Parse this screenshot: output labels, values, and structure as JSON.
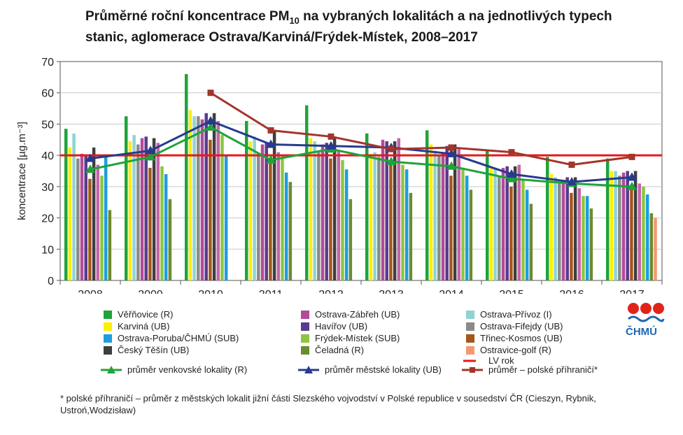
{
  "title": {
    "line1_pre": "Průměrné roční koncentrace PM",
    "line1_sub": "10",
    "line1_post": " na vybraných lokalitách a na jednotlivých typech",
    "line2": "stanic, aglomerace Ostrava/Karviná/Frýdek-Místek, 2008–2017"
  },
  "chart_data": {
    "type": "bar",
    "categories": [
      "2008",
      "2009",
      "2010",
      "2011",
      "2012",
      "2013",
      "2014",
      "2015",
      "2016",
      "2017"
    ],
    "ylabel": "koncentrace [µg.m⁻³]",
    "ylim": [
      0,
      70
    ],
    "yticks": [
      "0",
      "10",
      "20",
      "30",
      "40",
      "50",
      "60",
      "70"
    ],
    "grid": true,
    "series": [
      {
        "name": "Věřňovice (R)",
        "color": "#1fa33a",
        "values": [
          48.5,
          52.5,
          66,
          51,
          56,
          47,
          48,
          41.5,
          39.5,
          39
        ]
      },
      {
        "name": "Karviná (UB)",
        "color": "#ffee00",
        "values": [
          42.5,
          44.5,
          54.5,
          44.5,
          45.5,
          40.5,
          43.5,
          36.5,
          34,
          35
        ]
      },
      {
        "name": "Ostrava-Přívoz (I)",
        "color": "#8fd3d3",
        "values": [
          47,
          46.5,
          52.5,
          46,
          44.5,
          41,
          41.5,
          36,
          33,
          35
        ]
      },
      {
        "name": "Ostrava-Fifejdy (UB)",
        "color": "#8a8a8a",
        "values": [
          39,
          43.5,
          52.5,
          40.5,
          41,
          39.5,
          40,
          33.5,
          31,
          33.5
        ]
      },
      {
        "name": "Ostrava-Zábřeh (UB)",
        "color": "#b14c97",
        "values": [
          40.5,
          45.5,
          51.5,
          43.5,
          43.5,
          45,
          41,
          36,
          32,
          34.5
        ]
      },
      {
        "name": "Havířov (UB)",
        "color": "#5a3a8e",
        "values": [
          40,
          46,
          53.5,
          44,
          44,
          44.5,
          43,
          36.5,
          33,
          35
        ]
      },
      {
        "name": "Třinec-Kosmos (UB)",
        "color": "#a5561b",
        "values": [
          32.5,
          36,
          45,
          38.5,
          39,
          37.5,
          33.5,
          30,
          28,
          30
        ]
      },
      {
        "name": "Český Těšín (UB)",
        "color": "#3e3e3e",
        "values": [
          42.5,
          45.5,
          53.5,
          48,
          46,
          44.5,
          43.5,
          36.5,
          33,
          35
        ]
      },
      {
        "name": "Ostrava-Zábřeh (UB) ",
        "color": "#c564ad",
        "values": [
          37,
          44,
          51,
          41,
          41.5,
          45.5,
          42,
          37,
          29.5,
          31
        ]
      },
      {
        "name": "Frýdek-Místek (SUB)",
        "color": "#8cc63f",
        "values": [
          33.5,
          36.5,
          46.5,
          40,
          38.5,
          37,
          36,
          32,
          27,
          30
        ]
      },
      {
        "name": "Ostrava-Poruba/ČHMÚ (SUB)",
        "color": "#1d9de0",
        "values": [
          40,
          34,
          40,
          34.5,
          35.5,
          35.5,
          33.5,
          29,
          27,
          27.5
        ]
      },
      {
        "name": "Čeladná (R)",
        "color": "#6b8c2e",
        "values": [
          22.5,
          26,
          0,
          31.5,
          26,
          28,
          29,
          24.5,
          23,
          21.5
        ]
      },
      {
        "name": "Ostravice-golf (R)",
        "color": "#f39870",
        "values": [
          0,
          0,
          0,
          0,
          0,
          0,
          0,
          0,
          0,
          20
        ]
      }
    ],
    "bar_order": [
      0,
      1,
      2,
      3,
      4,
      5,
      6,
      7,
      8,
      9,
      10,
      11,
      12
    ],
    "lines": [
      {
        "name": "průměr venkovské lokality (R)",
        "color": "#1fa33a",
        "marker": "triangle",
        "values": [
          35.5,
          39.5,
          49,
          38.5,
          42,
          38,
          36.5,
          32.5,
          31,
          30
        ]
      },
      {
        "name": "průměr městské lokality (UB)",
        "color": "#253b8f",
        "marker": "triangle",
        "values": [
          39,
          41.5,
          51,
          43.5,
          43,
          42.5,
          40.5,
          34,
          31.5,
          33
        ]
      },
      {
        "name": "průměr – polské příhraničí*",
        "color": "#a3352b",
        "marker": "square",
        "values": [
          null,
          null,
          60,
          48,
          46,
          42,
          42.5,
          41,
          37,
          39.5
        ]
      }
    ],
    "limit": {
      "name": "LV rok",
      "color": "#e21a1a",
      "value": 40
    }
  },
  "legend": {
    "col1": [
      {
        "label": "Věřňovice (R)",
        "color": "#1fa33a"
      },
      {
        "label": "Karviná (UB)",
        "color": "#ffee00"
      },
      {
        "label": "Ostrava-Poruba/ČHMÚ (SUB)",
        "color": "#1d9de0"
      },
      {
        "label": "Český Těšín (UB)",
        "color": "#3e3e3e"
      }
    ],
    "col2": [
      {
        "label": "Ostrava-Zábřeh (UB)",
        "color": "#b14c97"
      },
      {
        "label": "Havířov (UB)",
        "color": "#5a3a8e"
      },
      {
        "label": "Frýdek-Místek (SUB)",
        "color": "#8cc63f"
      },
      {
        "label": "Čeladná (R)",
        "color": "#6b8c2e"
      }
    ],
    "col3": [
      {
        "label": "Ostrava-Přívoz (I)",
        "color": "#8fd3d3"
      },
      {
        "label": "Ostrava-Fifejdy (UB)",
        "color": "#8a8a8a"
      },
      {
        "label": "Třinec-Kosmos (UB)",
        "color": "#a5561b"
      },
      {
        "label": "Ostravice-golf (R)",
        "color": "#f39870"
      }
    ],
    "lv_label": "LV rok",
    "line_rural": "průměr venkovské lokality (R)",
    "line_urban": "průměr městské lokality (UB)",
    "line_polish": "průměr – polské příhraničí*"
  },
  "logo": {
    "text": "ČHMÚ",
    "icon": "chmu-logo-icon"
  },
  "footnote": "* polské příhraničí – průměr z městských lokalit jižní části Slezského vojvodství v Polské republice v sousedství ČR (Cieszyn, Rybnik, Ustroń,Wodzisław)"
}
